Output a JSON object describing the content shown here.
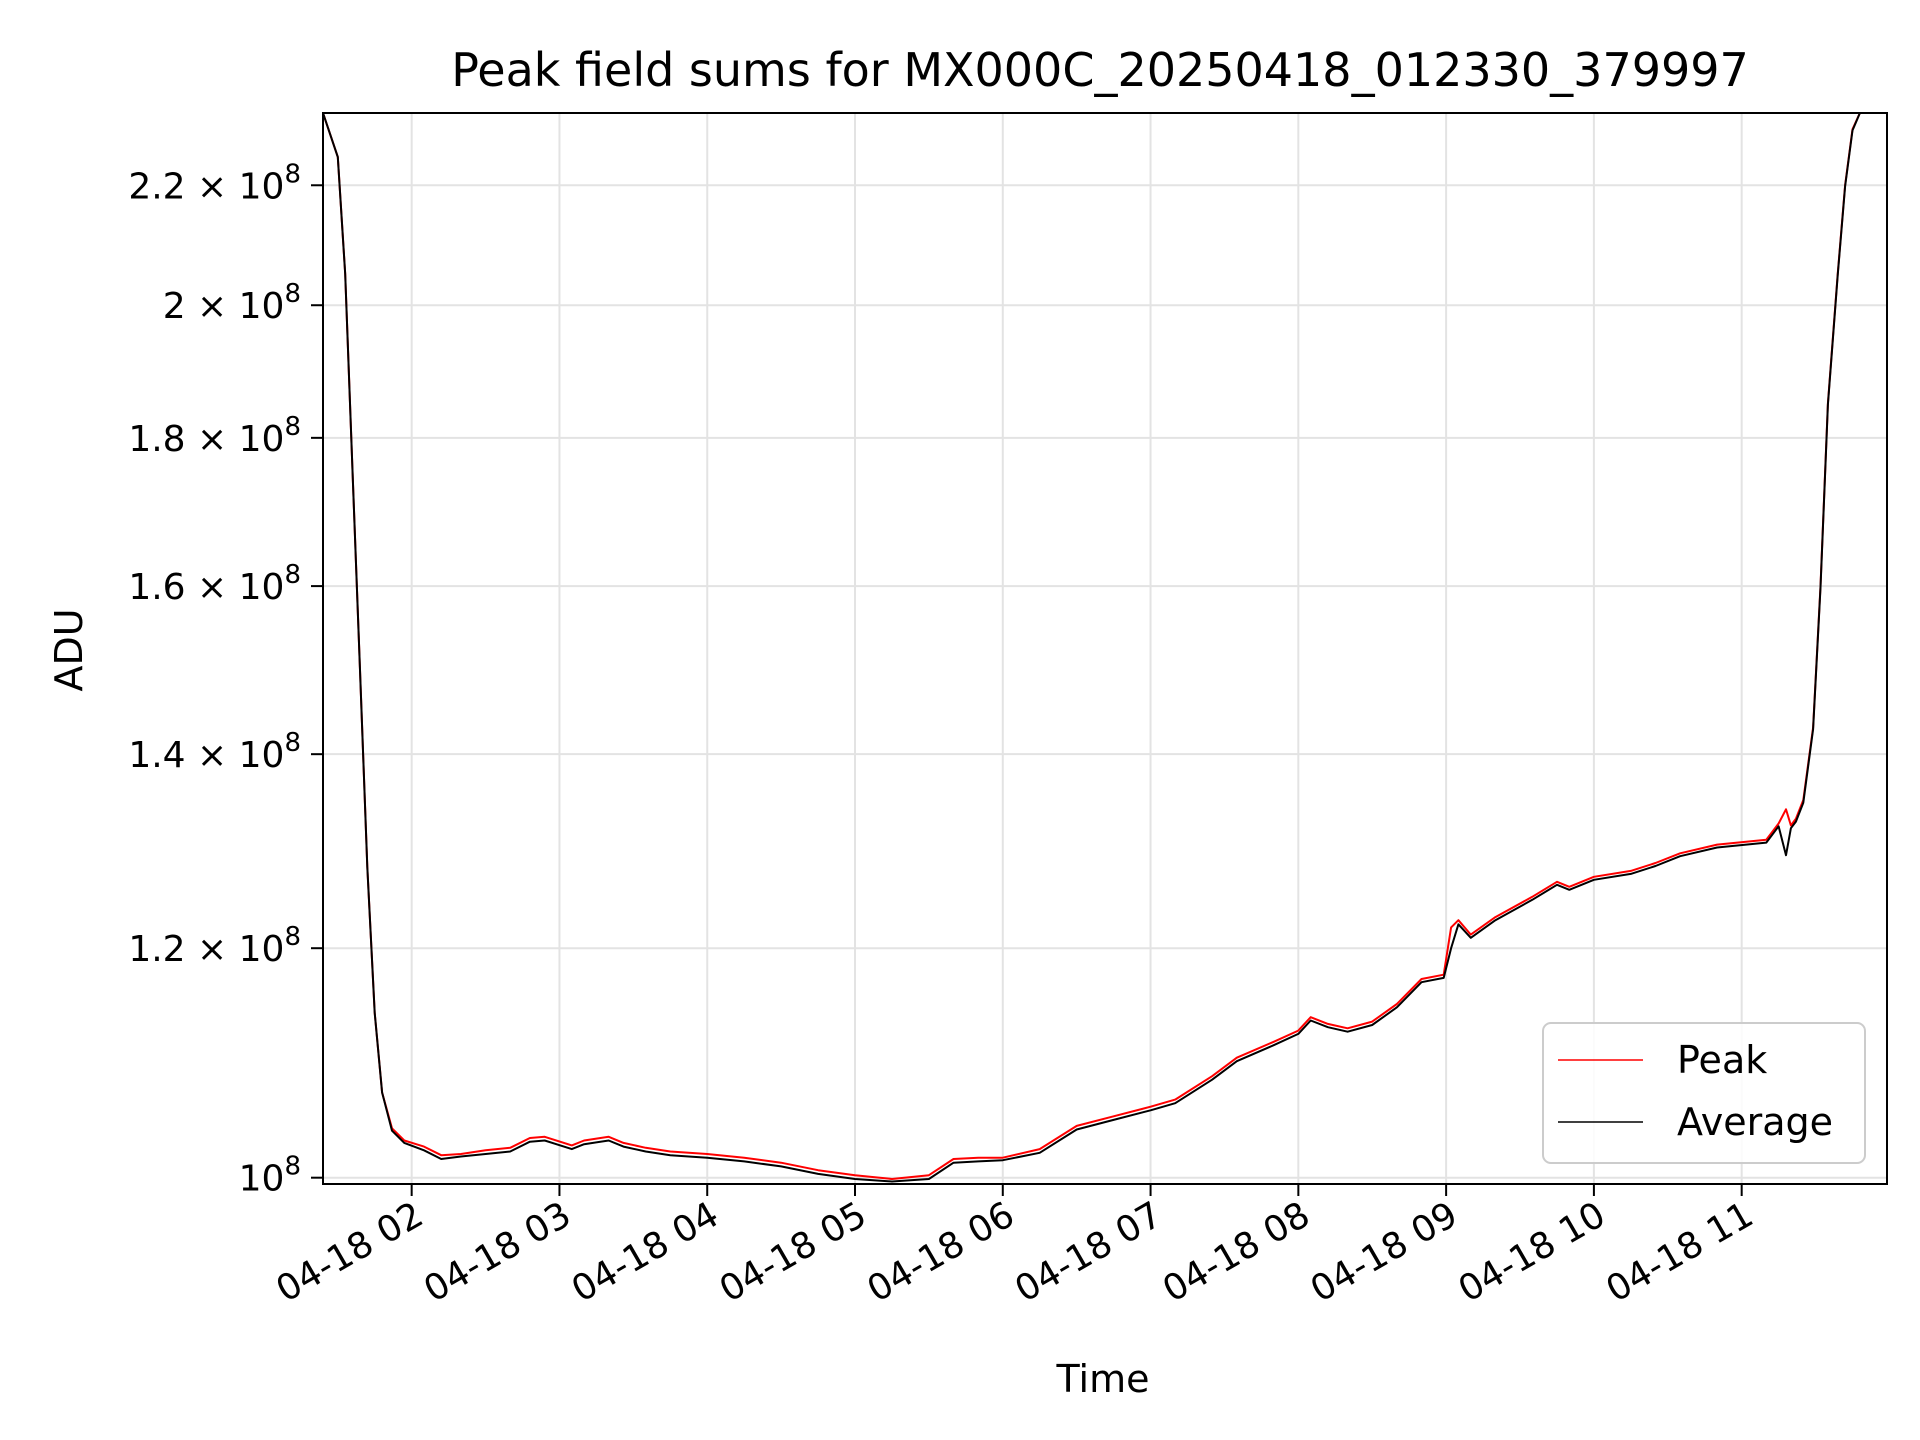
{
  "chart_data": {
    "type": "line",
    "title": "Peak field sums for MX000C_20250418_012330_379997",
    "xlabel": "Time",
    "ylabel": "ADU",
    "y_scale": "log",
    "grid": true,
    "legend_placement": "lower right",
    "x_range": [
      "2025-04-18 01:24",
      "2025-04-18 11:59"
    ],
    "ylim": [
      99500000,
      233000000
    ],
    "x_ticks": [
      {
        "value": "2025-04-18 02:00",
        "label": "04-18 02"
      },
      {
        "value": "2025-04-18 03:00",
        "label": "04-18 03"
      },
      {
        "value": "2025-04-18 04:00",
        "label": "04-18 04"
      },
      {
        "value": "2025-04-18 05:00",
        "label": "04-18 05"
      },
      {
        "value": "2025-04-18 06:00",
        "label": "04-18 06"
      },
      {
        "value": "2025-04-18 07:00",
        "label": "04-18 07"
      },
      {
        "value": "2025-04-18 08:00",
        "label": "04-18 08"
      },
      {
        "value": "2025-04-18 09:00",
        "label": "04-18 09"
      },
      {
        "value": "2025-04-18 10:00",
        "label": "04-18 10"
      },
      {
        "value": "2025-04-18 11:00",
        "label": "04-18 11"
      }
    ],
    "y_ticks": [
      {
        "value": 100000000,
        "mantissa": "",
        "exp": "8"
      },
      {
        "value": 120000000,
        "mantissa": "1.2",
        "exp": "8"
      },
      {
        "value": 140000000,
        "mantissa": "1.4",
        "exp": "8"
      },
      {
        "value": 160000000,
        "mantissa": "1.6",
        "exp": "8"
      },
      {
        "value": 180000000,
        "mantissa": "1.8",
        "exp": "8"
      },
      {
        "value": 200000000,
        "mantissa": "2",
        "exp": "8"
      },
      {
        "value": 220000000,
        "mantissa": "2.2",
        "exp": "8"
      }
    ],
    "series": [
      {
        "name": "Peak",
        "color": "#ff0000",
        "x": [
          "2025-04-18 01:24",
          "2025-04-18 01:30",
          "2025-04-18 01:33",
          "2025-04-18 01:36",
          "2025-04-18 01:39",
          "2025-04-18 01:42",
          "2025-04-18 01:45",
          "2025-04-18 01:48",
          "2025-04-18 01:52",
          "2025-04-18 01:57",
          "2025-04-18 02:05",
          "2025-04-18 02:12",
          "2025-04-18 02:20",
          "2025-04-18 02:30",
          "2025-04-18 02:40",
          "2025-04-18 02:48",
          "2025-04-18 02:54",
          "2025-04-18 03:05",
          "2025-04-18 03:10",
          "2025-04-18 03:20",
          "2025-04-18 03:26",
          "2025-04-18 03:35",
          "2025-04-18 03:45",
          "2025-04-18 04:00",
          "2025-04-18 04:15",
          "2025-04-18 04:30",
          "2025-04-18 04:45",
          "2025-04-18 05:00",
          "2025-04-18 05:15",
          "2025-04-18 05:30",
          "2025-04-18 05:40",
          "2025-04-18 05:50",
          "2025-04-18 06:00",
          "2025-04-18 06:15",
          "2025-04-18 06:30",
          "2025-04-18 06:45",
          "2025-04-18 07:00",
          "2025-04-18 07:10",
          "2025-04-18 07:25",
          "2025-04-18 07:35",
          "2025-04-18 07:50",
          "2025-04-18 08:00",
          "2025-04-18 08:05",
          "2025-04-18 08:12",
          "2025-04-18 08:20",
          "2025-04-18 08:30",
          "2025-04-18 08:40",
          "2025-04-18 08:50",
          "2025-04-18 08:59",
          "2025-04-18 09:02",
          "2025-04-18 09:05",
          "2025-04-18 09:10",
          "2025-04-18 09:20",
          "2025-04-18 09:35",
          "2025-04-18 09:45",
          "2025-04-18 09:50",
          "2025-04-18 10:00",
          "2025-04-18 10:15",
          "2025-04-18 10:25",
          "2025-04-18 10:35",
          "2025-04-18 10:50",
          "2025-04-18 11:10",
          "2025-04-18 11:15",
          "2025-04-18 11:18",
          "2025-04-18 11:20",
          "2025-04-18 11:22",
          "2025-04-18 11:25",
          "2025-04-18 11:29",
          "2025-04-18 11:32",
          "2025-04-18 11:35",
          "2025-04-18 11:39",
          "2025-04-18 11:42",
          "2025-04-18 11:45",
          "2025-04-18 11:48",
          "2025-04-18 11:50",
          "2025-04-18 11:59"
        ],
        "y": [
          233000000,
          225000000,
          205000000,
          175000000,
          150000000,
          128000000,
          114000000,
          107000000,
          104000000,
          103000000,
          102500000,
          101800000,
          101900000,
          102200000,
          102400000,
          103200000,
          103300000,
          102600000,
          103000000,
          103300000,
          102800000,
          102400000,
          102100000,
          101900000,
          101600000,
          101200000,
          100600000,
          100200000,
          99900000,
          100200000,
          101500000,
          101600000,
          101600000,
          102300000,
          104200000,
          105000000,
          105800000,
          106400000,
          108400000,
          110000000,
          111400000,
          112400000,
          113600000,
          113000000,
          112600000,
          113200000,
          114800000,
          117100000,
          117500000,
          122000000,
          122700000,
          121300000,
          123000000,
          125000000,
          126500000,
          126000000,
          127000000,
          127600000,
          128400000,
          129400000,
          130300000,
          130800000,
          132500000,
          134000000,
          132300000,
          133000000,
          135000000,
          143000000,
          160000000,
          185000000,
          205000000,
          220000000,
          230000000,
          233000000,
          233000000,
          233000000
        ]
      },
      {
        "name": "Average",
        "color": "#000000",
        "x": [
          "2025-04-18 01:24",
          "2025-04-18 01:30",
          "2025-04-18 01:33",
          "2025-04-18 01:36",
          "2025-04-18 01:39",
          "2025-04-18 01:42",
          "2025-04-18 01:45",
          "2025-04-18 01:48",
          "2025-04-18 01:52",
          "2025-04-18 01:57",
          "2025-04-18 02:05",
          "2025-04-18 02:12",
          "2025-04-18 02:20",
          "2025-04-18 02:30",
          "2025-04-18 02:40",
          "2025-04-18 02:48",
          "2025-04-18 02:54",
          "2025-04-18 03:05",
          "2025-04-18 03:10",
          "2025-04-18 03:20",
          "2025-04-18 03:26",
          "2025-04-18 03:35",
          "2025-04-18 03:45",
          "2025-04-18 04:00",
          "2025-04-18 04:15",
          "2025-04-18 04:30",
          "2025-04-18 04:45",
          "2025-04-18 05:00",
          "2025-04-18 05:15",
          "2025-04-18 05:30",
          "2025-04-18 05:40",
          "2025-04-18 05:50",
          "2025-04-18 06:00",
          "2025-04-18 06:15",
          "2025-04-18 06:30",
          "2025-04-18 06:45",
          "2025-04-18 07:00",
          "2025-04-18 07:10",
          "2025-04-18 07:25",
          "2025-04-18 07:35",
          "2025-04-18 07:50",
          "2025-04-18 08:00",
          "2025-04-18 08:05",
          "2025-04-18 08:12",
          "2025-04-18 08:20",
          "2025-04-18 08:30",
          "2025-04-18 08:40",
          "2025-04-18 08:50",
          "2025-04-18 08:59",
          "2025-04-18 09:02",
          "2025-04-18 09:05",
          "2025-04-18 09:10",
          "2025-04-18 09:20",
          "2025-04-18 09:35",
          "2025-04-18 09:45",
          "2025-04-18 09:50",
          "2025-04-18 10:00",
          "2025-04-18 10:15",
          "2025-04-18 10:25",
          "2025-04-18 10:35",
          "2025-04-18 10:50",
          "2025-04-18 11:10",
          "2025-04-18 11:15",
          "2025-04-18 11:18",
          "2025-04-18 11:20",
          "2025-04-18 11:22",
          "2025-04-18 11:25",
          "2025-04-18 11:29",
          "2025-04-18 11:32",
          "2025-04-18 11:35",
          "2025-04-18 11:39",
          "2025-04-18 11:42",
          "2025-04-18 11:45",
          "2025-04-18 11:48",
          "2025-04-18 11:50",
          "2025-04-18 11:59"
        ],
        "y": [
          233000000,
          225000000,
          205000000,
          175000000,
          150000000,
          128000000,
          114000000,
          107000000,
          103800000,
          102800000,
          102200000,
          101500000,
          101700000,
          101900000,
          102100000,
          102900000,
          103000000,
          102300000,
          102700000,
          103000000,
          102500000,
          102100000,
          101800000,
          101600000,
          101300000,
          100900000,
          100300000,
          99900000,
          99700000,
          99900000,
          101200000,
          101300000,
          101400000,
          102000000,
          103900000,
          104700000,
          105500000,
          106100000,
          108100000,
          109700000,
          111100000,
          112100000,
          113300000,
          112700000,
          112300000,
          112900000,
          114500000,
          116800000,
          117200000,
          120000000,
          122300000,
          121000000,
          122700000,
          124700000,
          126200000,
          125700000,
          126700000,
          127300000,
          128100000,
          129100000,
          130000000,
          130500000,
          132200000,
          129200000,
          132000000,
          132700000,
          134700000,
          142800000,
          159800000,
          184800000,
          204800000,
          219800000,
          229800000,
          233000000,
          233000000,
          233000000
        ]
      }
    ]
  }
}
